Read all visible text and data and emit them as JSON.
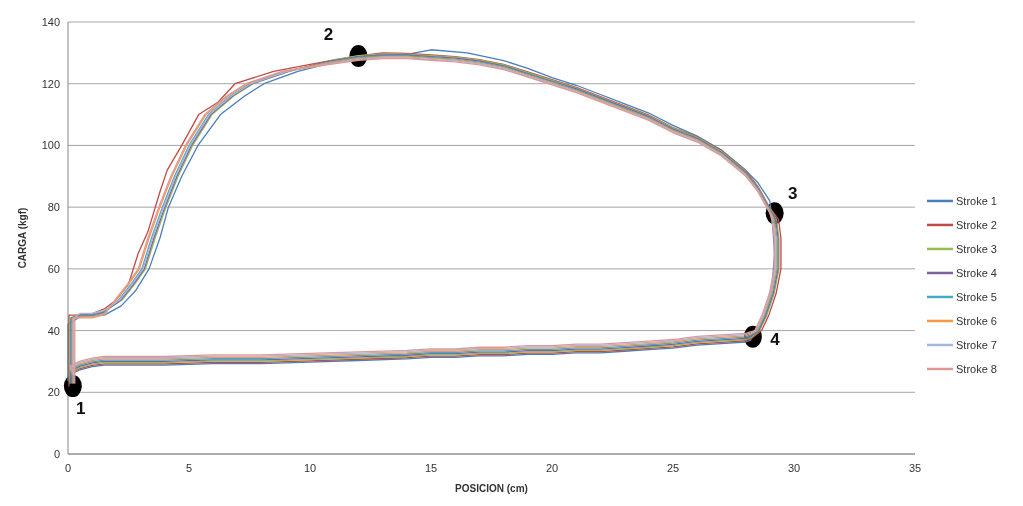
{
  "chart_data": {
    "type": "line",
    "xlabel": "POSICION (cm)",
    "ylabel": "CARGA (kgf)",
    "xlim": [
      0,
      35
    ],
    "xticks": [
      0,
      5,
      10,
      15,
      20,
      25,
      30,
      35
    ],
    "ylim": [
      0,
      140
    ],
    "yticks": [
      0,
      20,
      40,
      60,
      80,
      100,
      120,
      140
    ],
    "grid": "y",
    "legend": "right",
    "line_style": "solid",
    "series": [
      {
        "name": "Stroke 1",
        "color": "#4a7ebb",
        "x": [
          0,
          0,
          0.5,
          1,
          1.5,
          2.2,
          2.8,
          3.35,
          3.8,
          4.15,
          4.7,
          5.37,
          6.3,
          7.3,
          8.1,
          9.5,
          11,
          12.8,
          14,
          15,
          16.5,
          18,
          19,
          20,
          21,
          22,
          23,
          24,
          25,
          26,
          27,
          28,
          28.5,
          29,
          29.1,
          29.2,
          29.1,
          28.9,
          28.6,
          28.3,
          28.2,
          28,
          27,
          26,
          25,
          24,
          23,
          22,
          21,
          20,
          19,
          18,
          17,
          16,
          15,
          14,
          12,
          10,
          8,
          6,
          4,
          2,
          1.5,
          1,
          0.5,
          0.1,
          0
        ],
        "values": [
          24,
          42,
          44.5,
          45,
          45,
          48,
          53,
          60,
          70,
          80,
          90,
          100,
          110,
          116,
          120,
          124,
          127,
          129,
          129.5,
          131,
          130,
          127.5,
          125,
          122,
          119.5,
          116.5,
          113.5,
          110.5,
          106.5,
          103,
          98.5,
          92,
          88,
          82,
          76,
          65,
          55,
          47,
          41,
          38.5,
          36.8,
          36.3,
          35.8,
          35.3,
          34.3,
          33.8,
          33.3,
          32.8,
          32.8,
          32.3,
          32.3,
          31.8,
          31.8,
          31.3,
          31.3,
          30.8,
          30.3,
          29.8,
          29.3,
          29.3,
          28.8,
          28.8,
          28.8,
          28.3,
          27.3,
          25.8,
          23.8
        ]
      },
      {
        "name": "Stroke 2",
        "color": "#be4b48",
        "x": [
          0.04,
          0.04,
          0.5,
          1,
          1.5,
          2,
          2.5,
          2.9,
          3.3,
          3.8,
          4.1,
          4.7,
          5.4,
          6.2,
          6.9,
          8.5,
          10.5,
          12,
          13,
          14,
          15,
          16,
          17,
          18,
          19,
          20,
          21,
          22,
          23,
          24,
          25,
          26,
          27,
          28,
          28.5,
          29,
          29.36,
          29.46,
          29.46,
          29.26,
          28.96,
          28.66,
          28.2,
          28,
          27,
          26,
          25,
          24,
          23,
          22,
          21,
          20,
          19,
          18,
          17,
          16,
          15,
          14,
          12,
          10,
          8,
          6,
          4,
          2,
          1.5,
          1,
          0.5,
          0.1,
          0.04
        ],
        "values": [
          22,
          45,
          45,
          45.5,
          47,
          50,
          55,
          65,
          72,
          85,
          92,
          100,
          110,
          114,
          120,
          124,
          127,
          129,
          130,
          129.8,
          129.3,
          128.8,
          127.8,
          126.3,
          123.8,
          121.3,
          118.8,
          115.8,
          112.8,
          109.8,
          105.8,
          102.8,
          98.3,
          91.8,
          86.8,
          79.8,
          76,
          70,
          60,
          52,
          45,
          40,
          37.2,
          36.7,
          36.2,
          35.7,
          34.7,
          34.2,
          33.7,
          33.2,
          33.2,
          32.7,
          32.7,
          32.2,
          32.2,
          31.7,
          31.7,
          31.2,
          30.7,
          30.2,
          29.7,
          29.7,
          29.2,
          29.2,
          29.2,
          28.7,
          27.7,
          26.2,
          24.2
        ]
      },
      {
        "name": "Stroke 3",
        "color": "#98b954",
        "x": [
          0.08,
          0.08,
          0.5,
          1,
          1.5,
          2.25,
          2.75,
          3.2,
          3.6,
          4.05,
          4.55,
          5.15,
          5.95,
          6.85,
          7.65,
          9.15,
          10.9,
          12,
          13,
          14,
          15,
          16,
          17,
          18,
          19,
          20,
          21,
          22,
          23,
          24,
          25,
          26,
          27,
          28,
          28.5,
          29,
          29.28,
          29.38,
          29.38,
          29.18,
          28.88,
          28.58,
          28.2,
          28,
          27,
          26,
          25,
          24,
          23,
          22,
          21,
          20,
          19,
          18,
          17,
          16,
          15,
          14,
          12,
          10,
          8,
          6,
          4,
          2,
          1.5,
          1,
          0.5,
          0.1,
          0.08
        ],
        "values": [
          23,
          44,
          45.3,
          45.3,
          46.3,
          50,
          55,
          60,
          70,
          80,
          90,
          100,
          110,
          116,
          120,
          124,
          127.6,
          129.1,
          129.6,
          129.6,
          129.1,
          128.6,
          127.6,
          126.1,
          123.6,
          121.1,
          118.6,
          115.6,
          112.6,
          109.6,
          105.6,
          102.6,
          98.1,
          91.6,
          86.6,
          79.6,
          76,
          70,
          60,
          52,
          45,
          40,
          37.6,
          37.1,
          36.6,
          36.1,
          35.1,
          34.6,
          34.1,
          33.6,
          33.6,
          33.1,
          33.1,
          32.6,
          32.6,
          32.1,
          32.1,
          31.6,
          31.1,
          30.6,
          30.1,
          30.1,
          29.6,
          29.6,
          29.6,
          29.1,
          28.1,
          26.6,
          24.6
        ]
      },
      {
        "name": "Stroke 4",
        "color": "#7d60a0",
        "x": [
          0.12,
          0.12,
          0.5,
          1,
          1.5,
          2.2,
          2.7,
          3.15,
          3.55,
          4,
          4.5,
          5.1,
          5.9,
          6.8,
          7.6,
          9.1,
          10.8,
          12,
          13,
          14,
          15,
          16,
          17,
          18,
          19,
          20,
          21,
          22,
          23,
          24,
          25,
          26,
          27,
          28,
          28.5,
          29,
          29.24,
          29.34,
          29.34,
          29.14,
          28.84,
          28.54,
          28.2,
          28,
          27,
          26,
          25,
          24,
          23,
          22,
          21,
          20,
          19,
          18,
          17,
          16,
          15,
          14,
          12,
          10,
          8,
          6,
          4,
          2,
          1.5,
          1,
          0.5,
          0.1,
          0.12
        ],
        "values": [
          23,
          44,
          45,
          45,
          46,
          50,
          55,
          60,
          70,
          80,
          90,
          100,
          110,
          116,
          120,
          124,
          127.3,
          128.8,
          129.3,
          129.3,
          128.8,
          128.3,
          127.3,
          125.8,
          123.3,
          120.8,
          118.3,
          115.3,
          112.3,
          109.3,
          105.3,
          102.3,
          97.8,
          91.3,
          86.3,
          79.3,
          76,
          70,
          60,
          52,
          45,
          40,
          38,
          37.5,
          37,
          36.5,
          35.5,
          35,
          34.5,
          34,
          34,
          33.5,
          33.5,
          33,
          33,
          32.5,
          32.5,
          32,
          31.5,
          31,
          30.5,
          30.5,
          30,
          30,
          30,
          29.5,
          28.5,
          27,
          25
        ]
      },
      {
        "name": "Stroke 5",
        "color": "#46aac5",
        "x": [
          0.16,
          0.16,
          0.5,
          1,
          1.5,
          2.1,
          2.6,
          3.05,
          3.45,
          3.9,
          4.4,
          5,
          5.8,
          6.7,
          7.5,
          9,
          10.8,
          12,
          13,
          14,
          15,
          16,
          17,
          18,
          19,
          20,
          21,
          22,
          23,
          24,
          25,
          26,
          27,
          28,
          28.5,
          29,
          29.2,
          29.3,
          29.3,
          29.1,
          28.8,
          28.5,
          28.2,
          28,
          27,
          26,
          25,
          24,
          23,
          22,
          21,
          20,
          19,
          18,
          17,
          16,
          15,
          14,
          12,
          10,
          8,
          6,
          4,
          2,
          1.5,
          1,
          0.5,
          0.1,
          0.16
        ],
        "values": [
          23,
          44,
          44.7,
          44.7,
          45.7,
          50,
          55,
          60,
          70,
          80,
          90,
          100,
          110,
          116,
          120,
          124,
          127,
          128.5,
          129,
          129,
          128.5,
          128,
          127,
          125.5,
          123,
          120.5,
          118,
          115,
          112,
          109,
          105,
          102,
          97.5,
          91,
          86,
          79,
          76,
          70,
          60,
          52,
          45,
          40,
          38.4,
          37.9,
          37.4,
          36.9,
          35.9,
          35.4,
          34.9,
          34.4,
          34.4,
          33.9,
          33.9,
          33.4,
          33.4,
          32.9,
          32.9,
          32.4,
          31.9,
          31.4,
          30.9,
          30.9,
          30.4,
          30.4,
          30.4,
          29.9,
          28.9,
          27.4,
          25.4
        ]
      },
      {
        "name": "Stroke 6",
        "color": "#f79646",
        "x": [
          0.2,
          0.2,
          0.5,
          1,
          1.5,
          2,
          2.5,
          2.95,
          3.35,
          3.8,
          4.3,
          4.9,
          5.7,
          6.6,
          7.4,
          8.9,
          10.7,
          12,
          13,
          14,
          15,
          16,
          17,
          18,
          19,
          20,
          21,
          22,
          23,
          24,
          25,
          26,
          27,
          28,
          28.5,
          29,
          29.16,
          29.26,
          29.26,
          29.06,
          28.76,
          28.46,
          28.2,
          28,
          27,
          26,
          25,
          24,
          23,
          22,
          21,
          20,
          19,
          18,
          17,
          16,
          15,
          14,
          12,
          10,
          8,
          6,
          4,
          2,
          1.5,
          1,
          0.5,
          0.1,
          0.2
        ],
        "values": [
          23,
          44,
          44.4,
          44.4,
          45.4,
          50,
          55,
          60,
          70,
          80,
          90,
          100,
          110,
          116,
          120,
          124,
          126.7,
          128.2,
          128.7,
          128.7,
          128.2,
          127.7,
          126.7,
          125.2,
          122.7,
          120.2,
          117.7,
          114.7,
          111.7,
          108.7,
          104.7,
          101.7,
          97.2,
          90.7,
          85.7,
          78.7,
          76,
          70,
          60,
          52,
          45,
          40,
          38.8,
          38.3,
          37.8,
          37.3,
          36.3,
          35.8,
          35.3,
          34.8,
          34.8,
          34.3,
          34.3,
          33.8,
          33.8,
          33.3,
          33.3,
          32.8,
          32.3,
          31.8,
          31.3,
          31.3,
          30.8,
          30.8,
          30.8,
          30.3,
          29.3,
          27.8,
          25.8
        ]
      },
      {
        "name": "Stroke 7",
        "color": "#a5b6e0",
        "x": [
          0.24,
          0.24,
          0.5,
          1,
          1.5,
          2.15,
          2.65,
          3.1,
          3.5,
          3.95,
          4.45,
          5.05,
          5.85,
          6.75,
          7.55,
          9.05,
          10.8,
          12,
          13,
          14,
          15,
          16,
          17,
          18,
          19,
          20,
          21,
          22,
          23,
          24,
          25,
          26,
          27,
          28,
          28.5,
          29,
          29.12,
          29.22,
          29.22,
          29.02,
          28.72,
          28.42,
          28.2,
          28,
          27,
          26,
          25,
          24,
          23,
          22,
          21,
          20,
          19,
          18,
          17,
          16,
          15,
          14,
          12,
          10,
          8,
          6,
          4,
          2,
          1.5,
          1,
          0.5,
          0.1,
          0.24
        ],
        "values": [
          23,
          44,
          45.6,
          45.6,
          46.6,
          50,
          55,
          60,
          70,
          80,
          90,
          100,
          110,
          116,
          120,
          124,
          126.4,
          127.9,
          128.4,
          128.4,
          127.9,
          127.4,
          126.4,
          124.9,
          122.4,
          119.9,
          117.4,
          114.4,
          111.4,
          108.4,
          104.4,
          101.4,
          96.9,
          90.4,
          85.4,
          78.4,
          76,
          70,
          60,
          52,
          45,
          40,
          39.2,
          38.7,
          38.2,
          37.7,
          36.7,
          36.2,
          35.7,
          35.2,
          35.2,
          34.7,
          34.7,
          34.2,
          34.2,
          33.7,
          33.7,
          33.2,
          32.7,
          32.2,
          31.7,
          31.7,
          31.2,
          31.2,
          31.2,
          30.7,
          29.7,
          28.2,
          26.2
        ]
      },
      {
        "name": "Stroke 8",
        "color": "#e09896",
        "x": [
          0.28,
          0.28,
          0.5,
          1,
          1.5,
          1.95,
          2.45,
          2.9,
          3.3,
          3.75,
          4.25,
          4.85,
          5.65,
          6.55,
          7.35,
          8.85,
          10.7,
          12,
          13,
          14,
          15,
          16,
          17,
          18,
          19,
          20,
          21,
          22,
          23,
          24,
          25,
          26,
          27,
          28,
          28.5,
          29,
          29.08,
          29.18,
          29.18,
          28.98,
          28.68,
          28.38,
          28.2,
          28,
          27,
          26,
          25,
          24,
          23,
          22,
          21,
          20,
          19,
          18,
          17,
          16,
          15,
          14,
          12,
          10,
          8,
          6,
          4,
          2,
          1.5,
          1,
          0.5,
          0.1,
          0.28
        ],
        "values": [
          23,
          44,
          44.1,
          44.1,
          45.1,
          50,
          55,
          60,
          70,
          80,
          90,
          100,
          110,
          116,
          120,
          124,
          126.1,
          127.6,
          128.1,
          128.1,
          127.6,
          127.1,
          126.1,
          124.6,
          122.1,
          119.6,
          117.1,
          114.1,
          111.1,
          108.1,
          104.1,
          101.1,
          96.6,
          90.1,
          85.1,
          78.1,
          76,
          70,
          60,
          52,
          45,
          40,
          39.6,
          39.1,
          38.6,
          38.1,
          37.1,
          36.6,
          36.1,
          35.6,
          35.6,
          35.1,
          35.1,
          34.6,
          34.6,
          34.1,
          34.1,
          33.6,
          33.1,
          32.6,
          32.1,
          32.1,
          31.6,
          31.6,
          31.6,
          31.1,
          30.1,
          28.6,
          26.6
        ]
      }
    ],
    "annotations": [
      {
        "text": "1",
        "x": 0.2,
        "y": 22
      },
      {
        "text": "2",
        "x": 12,
        "y": 129
      },
      {
        "text": "3",
        "x": 29.2,
        "y": 78
      },
      {
        "text": "4",
        "x": 28.3,
        "y": 38
      }
    ]
  }
}
